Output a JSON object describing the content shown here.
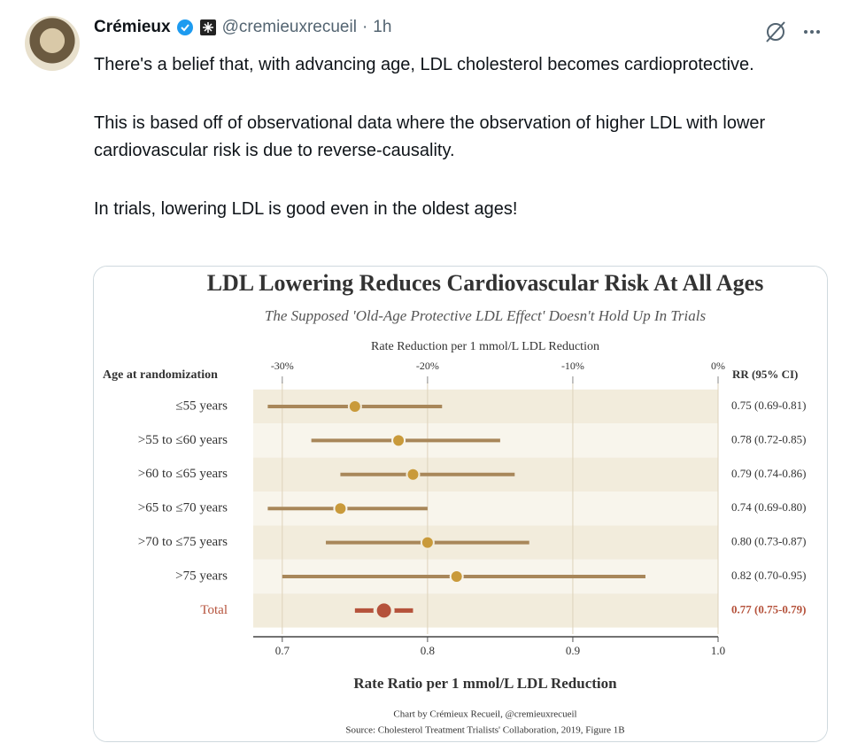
{
  "tweet": {
    "author": "Crémieux",
    "handle": "@cremieuxrecueil",
    "time": "1h",
    "paragraphs": [
      "There's a belief that, with advancing age, LDL cholesterol becomes cardioprotective.",
      "This is based off of observational data where the observation of higher LDL with lower cardiovascular risk is due to reverse-causality.",
      "In trials, lowering LDL is good even in the oldest ages!"
    ]
  },
  "chart_data": {
    "type": "forest",
    "title": "LDL Lowering Reduces Cardiovascular Risk At All Ages",
    "subtitle": "The Supposed 'Old-Age Protective LDL Effect' Doesn't Hold Up In Trials",
    "x2_label": "Rate Reduction per 1 mmol/L LDL Reduction",
    "x_label": "Rate Ratio per 1 mmol/L LDL Reduction",
    "row_header": "Age at randomization",
    "value_header": "RR (95% CI)",
    "categories": [
      "≤55 years",
      ">55 to ≤60 years",
      ">60 to ≤65 years",
      ">65 to ≤70 years",
      ">70 to ≤75 years",
      ">75 years",
      "Total"
    ],
    "values": [
      0.75,
      0.78,
      0.79,
      0.74,
      0.8,
      0.82,
      0.77
    ],
    "lower": [
      0.69,
      0.72,
      0.74,
      0.69,
      0.73,
      0.7,
      0.75
    ],
    "upper": [
      0.81,
      0.85,
      0.86,
      0.8,
      0.87,
      0.95,
      0.79
    ],
    "value_labels": [
      "0.75 (0.69-0.81)",
      "0.78 (0.72-0.85)",
      "0.79 (0.74-0.86)",
      "0.74 (0.69-0.80)",
      "0.80 (0.73-0.87)",
      "0.82 (0.70-0.95)",
      "0.77 (0.75-0.79)"
    ],
    "colors": [
      "#c99a3b",
      "#c99a3b",
      "#c99a3b",
      "#c99a3b",
      "#c99a3b",
      "#c99a3b",
      "#b5523b"
    ],
    "whisker_colors": [
      "#a8875a",
      "#a8875a",
      "#a8875a",
      "#a8875a",
      "#a8875a",
      "#a8875a",
      "#b5523b"
    ],
    "label_colors": [
      "#333333",
      "#333333",
      "#333333",
      "#333333",
      "#333333",
      "#333333",
      "#b5523b"
    ],
    "xlim": [
      0.68,
      1.0
    ],
    "xticks": [
      0.7,
      0.8,
      0.9,
      {
        "value": 1,
        "label": "1.0"
      }
    ],
    "x2lim": [
      -32,
      0
    ],
    "x2ticks": [
      {
        "value": -30,
        "label": "-30%"
      },
      {
        "value": -20,
        "label": "-20%"
      },
      {
        "value": -10,
        "label": "-10%"
      },
      {
        "value": 0,
        "label": "0%"
      }
    ],
    "grid": true,
    "credit": "Chart by Crémieux Recueil, @cremieuxrecueil",
    "source": "Source: Cholesterol Treatment Trialists' Collaboration, 2019, Figure 1B"
  }
}
